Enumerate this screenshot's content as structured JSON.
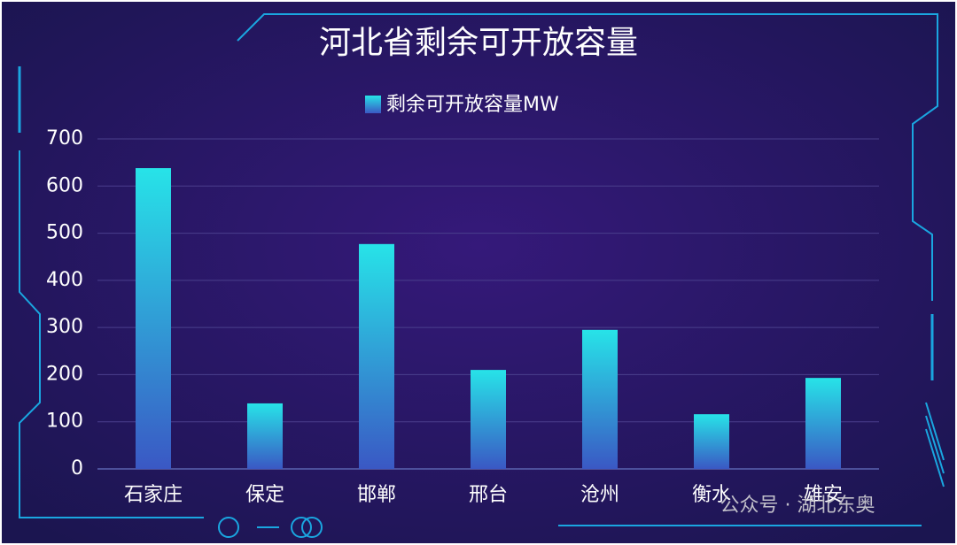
{
  "chart_data": {
    "type": "bar",
    "title": "河北省剩余可开放容量",
    "categories": [
      "石家庄",
      "保定",
      "邯郸",
      "邢台",
      "沧州",
      "衡水",
      "雄安"
    ],
    "series": [
      {
        "name": "剩余可开放容量MW",
        "color": "#27e3e8",
        "values": [
          638,
          139,
          477,
          210,
          295,
          116,
          193
        ]
      }
    ],
    "ylim": [
      0,
      700
    ],
    "yticks": [
      0,
      100,
      200,
      300,
      400,
      500,
      600,
      700
    ],
    "grid": true,
    "watermark": "公众号 · 湖北东奥"
  }
}
